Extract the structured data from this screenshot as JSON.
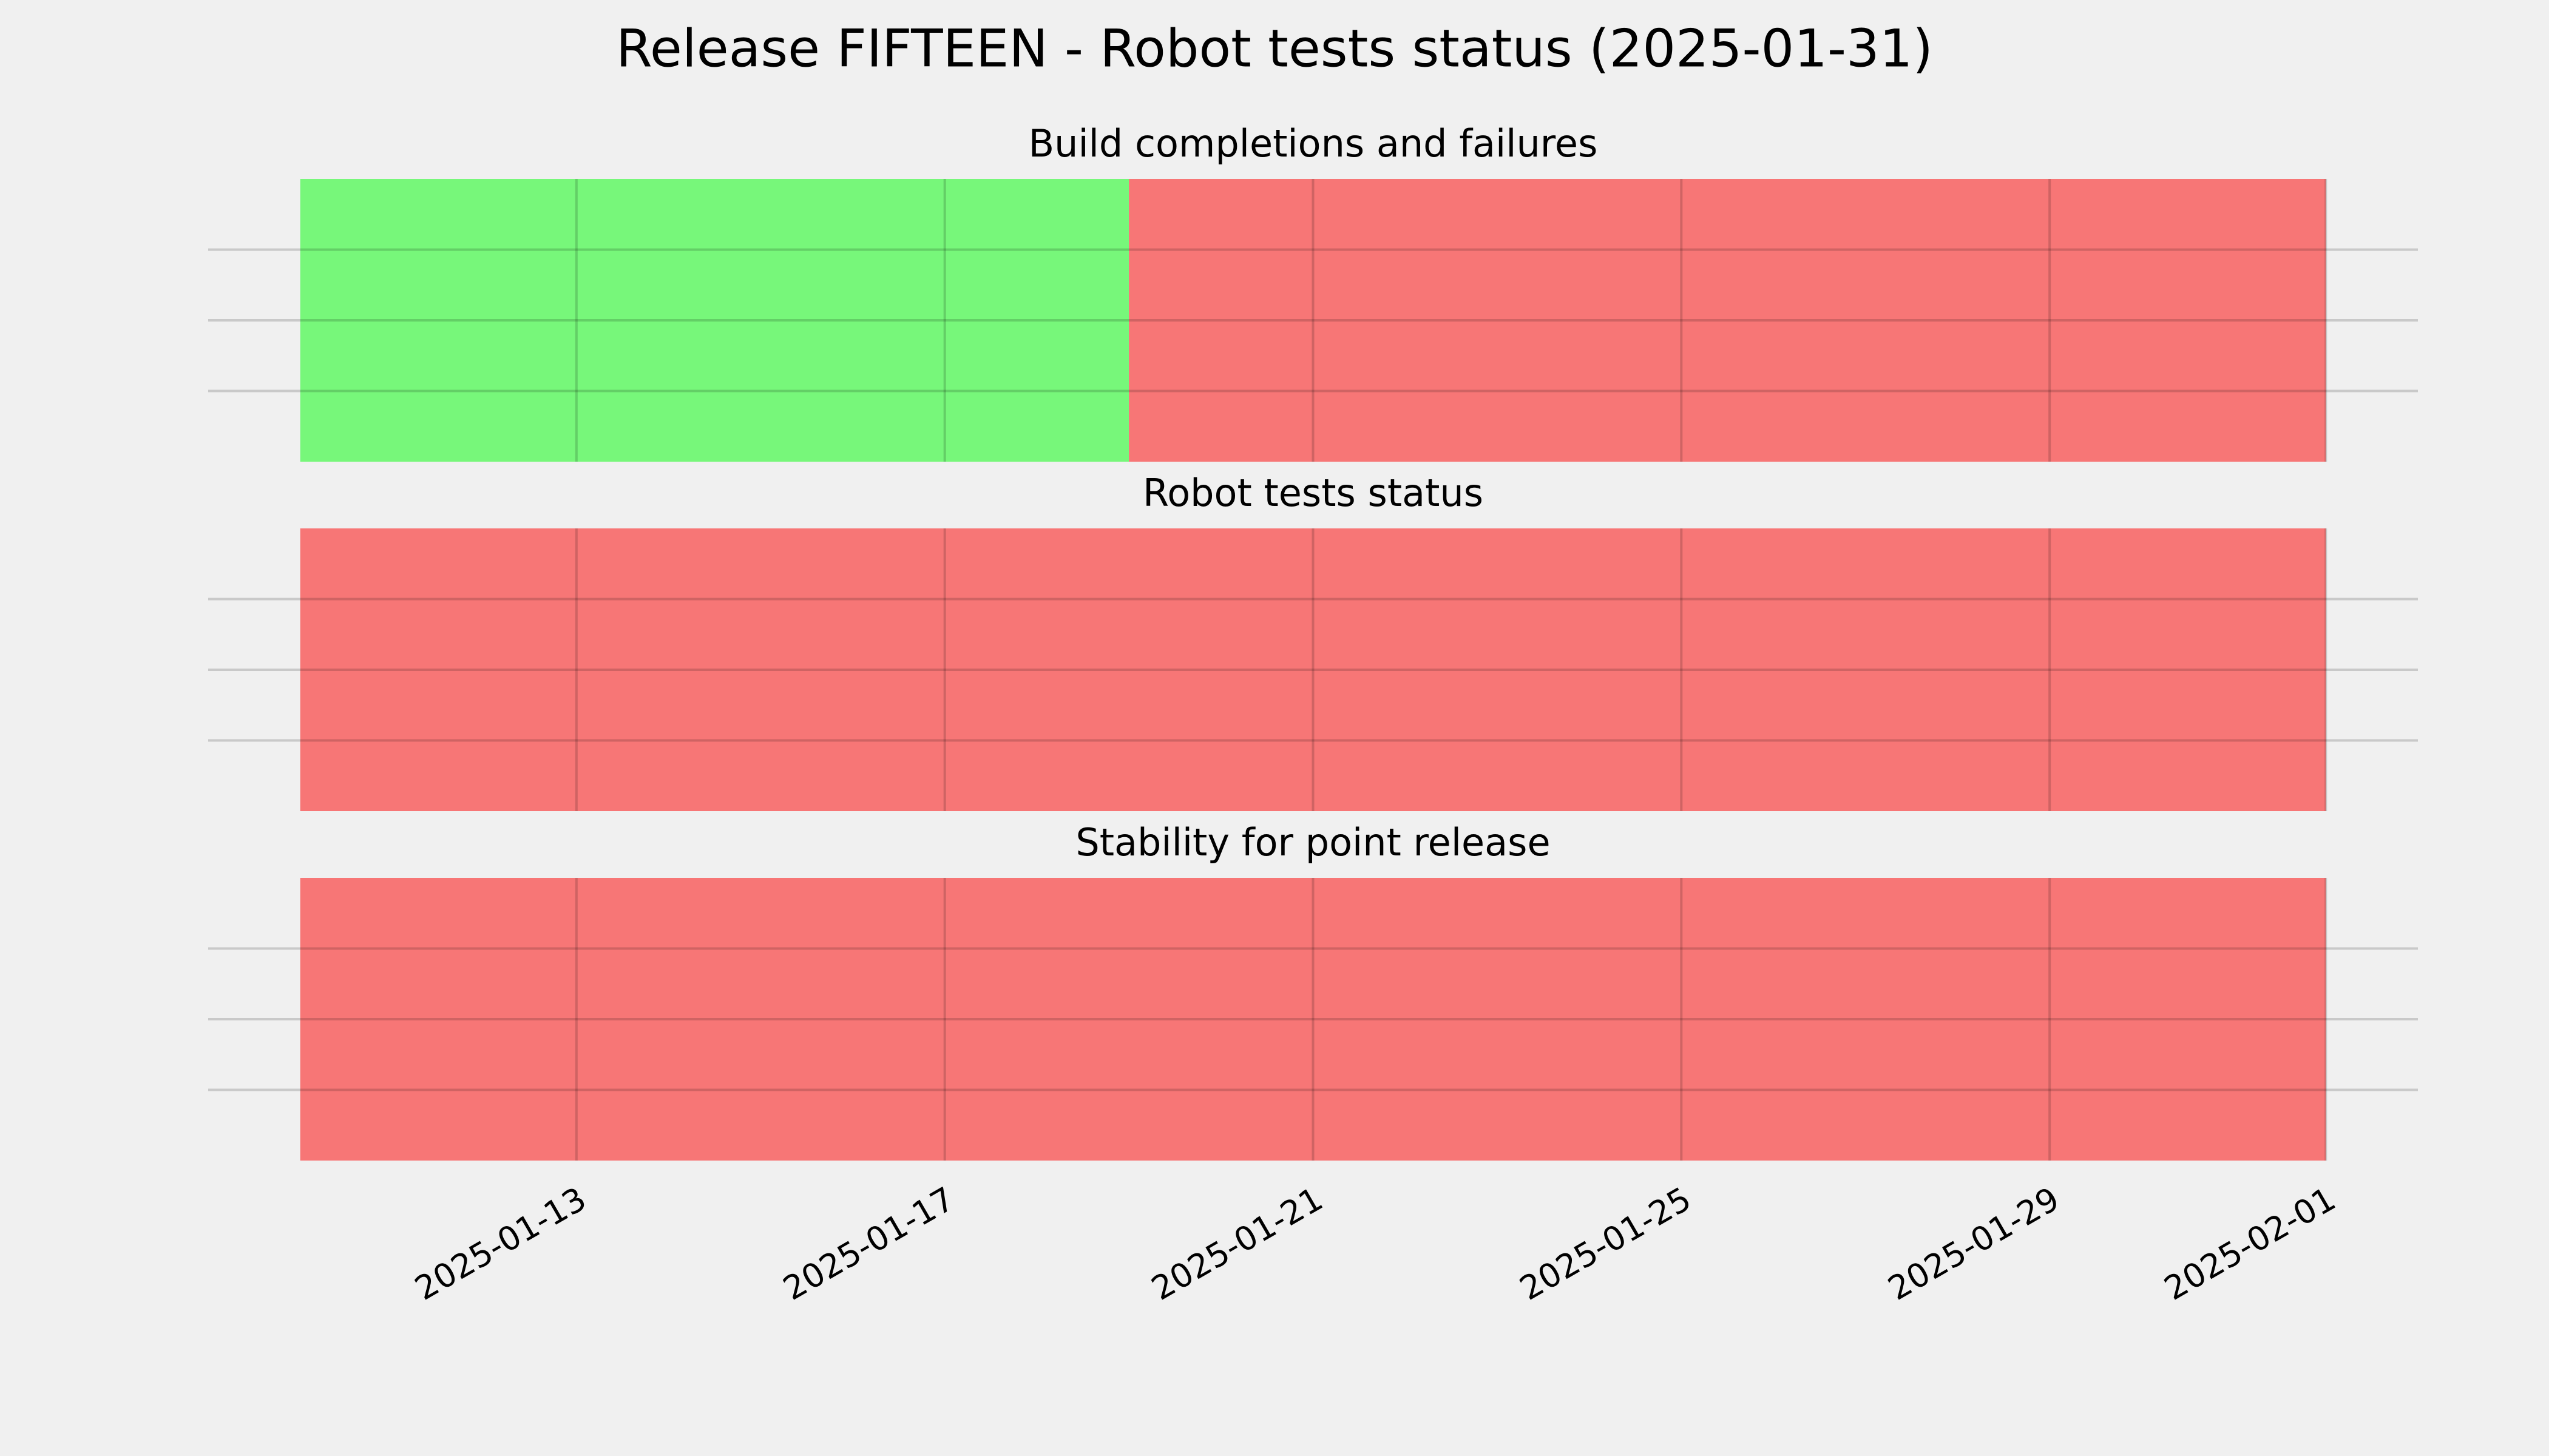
{
  "title": "Release FIFTEEN - Robot tests status (2025-01-31)",
  "chart_data": [
    {
      "type": "span",
      "title": "Build completions and failures",
      "spans": [
        {
          "start": "2025-01-10",
          "end": "2025-01-19",
          "color": "#77f77a"
        },
        {
          "start": "2025-01-19",
          "end": "2025-02-01",
          "color": "#f77676"
        }
      ],
      "xlim": [
        "2025-01-09",
        "2025-02-02"
      ],
      "xticks": [
        "2025-01-13",
        "2025-01-17",
        "2025-01-21",
        "2025-01-25",
        "2025-01-29",
        "2025-02-01"
      ],
      "ylim": [
        0,
        1
      ],
      "yticks": [
        0.25,
        0.5,
        0.75
      ],
      "grid": true
    },
    {
      "type": "span",
      "title": "Robot tests status",
      "spans": [
        {
          "start": "2025-01-10",
          "end": "2025-02-01",
          "color": "#f77676"
        }
      ],
      "xlim": [
        "2025-01-09",
        "2025-02-02"
      ],
      "xticks": [
        "2025-01-13",
        "2025-01-17",
        "2025-01-21",
        "2025-01-25",
        "2025-01-29",
        "2025-02-01"
      ],
      "ylim": [
        0,
        1
      ],
      "yticks": [
        0.25,
        0.5,
        0.75
      ],
      "grid": true
    },
    {
      "type": "span",
      "title": "Stability for point release",
      "spans": [
        {
          "start": "2025-01-10",
          "end": "2025-02-01",
          "color": "#f77676"
        }
      ],
      "xlim": [
        "2025-01-09",
        "2025-02-02"
      ],
      "xticks": [
        "2025-01-13",
        "2025-01-17",
        "2025-01-21",
        "2025-01-25",
        "2025-01-29",
        "2025-02-01"
      ],
      "ylim": [
        0,
        1
      ],
      "yticks": [
        0.25,
        0.5,
        0.75
      ],
      "grid": true
    }
  ]
}
